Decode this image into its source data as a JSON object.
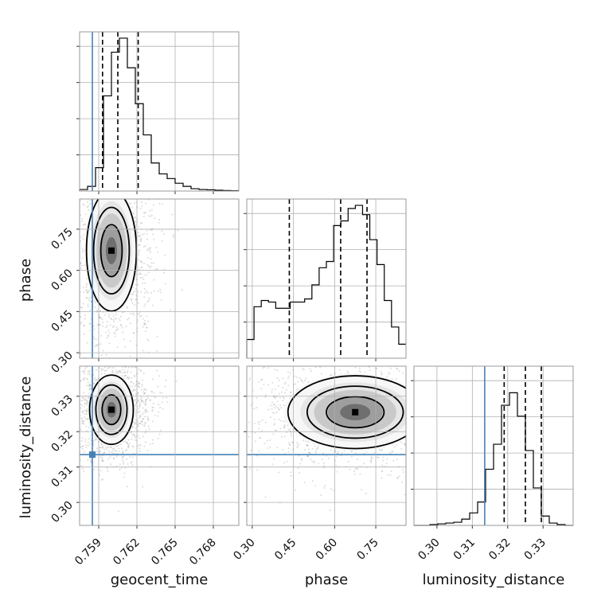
{
  "chart_data": {
    "type": "corner",
    "parameters": [
      "geocent_time",
      "phase",
      "luminosity_distance"
    ],
    "truths": {
      "geocent_time": 0.7585,
      "luminosity_distance": 0.3135
    },
    "ranges": {
      "geocent_time": [
        0.7575,
        0.77
      ],
      "phase": [
        0.28,
        0.86
      ],
      "luminosity_distance": [
        0.2935,
        0.3385
      ]
    },
    "ticks": {
      "geocent_time": [
        "0.759",
        "0.762",
        "0.765",
        "0.768"
      ],
      "phase": [
        "0.30",
        "0.45",
        "0.60",
        "0.75"
      ],
      "luminosity_distance": [
        "0.30",
        "0.31",
        "0.32",
        "0.33"
      ]
    },
    "quantiles": {
      "geocent_time": [
        0.7593,
        0.7605,
        0.7621
      ],
      "phase": [
        0.435,
        0.622,
        0.718
      ],
      "luminosity_distance": [
        0.319,
        0.325,
        0.3295
      ]
    },
    "histograms": {
      "geocent_time": [
        0.01,
        0.03,
        0.15,
        0.61,
        0.89,
        0.98,
        0.79,
        0.56,
        0.36,
        0.18,
        0.11,
        0.08,
        0.05,
        0.03,
        0.015,
        0.01,
        0.008,
        0.005,
        0.003,
        0.002
      ],
      "phase": [
        0.12,
        0.33,
        0.37,
        0.36,
        0.32,
        0.32,
        0.36,
        0.36,
        0.38,
        0.47,
        0.58,
        0.62,
        0.85,
        0.88,
        0.96,
        0.98,
        0.92,
        0.76,
        0.6,
        0.37,
        0.2,
        0.09
      ],
      "luminosity_distance": [
        0.0,
        0.0,
        0.005,
        0.01,
        0.015,
        0.02,
        0.04,
        0.08,
        0.15,
        0.36,
        0.52,
        0.77,
        0.85,
        0.7,
        0.48,
        0.24,
        0.06,
        0.015,
        0.005,
        0.0
      ]
    },
    "pairs": [
      {
        "x": "geocent_time",
        "y": "phase",
        "center": [
          0.76,
          0.672
        ],
        "spread": [
          0.0008,
          0.09
        ],
        "levels": 3
      },
      {
        "x": "geocent_time",
        "y": "luminosity_distance",
        "center": [
          0.76,
          0.3262
        ],
        "spread": [
          0.0007,
          0.004
        ],
        "levels": 3
      },
      {
        "x": "phase",
        "y": "luminosity_distance",
        "center": [
          0.675,
          0.3255
        ],
        "spread": [
          0.1,
          0.0042
        ],
        "levels": 3
      }
    ],
    "colors": {
      "truth": "#4682b4",
      "line": "#000000",
      "grid": "#b0b0b0",
      "frame": "#999999"
    }
  }
}
